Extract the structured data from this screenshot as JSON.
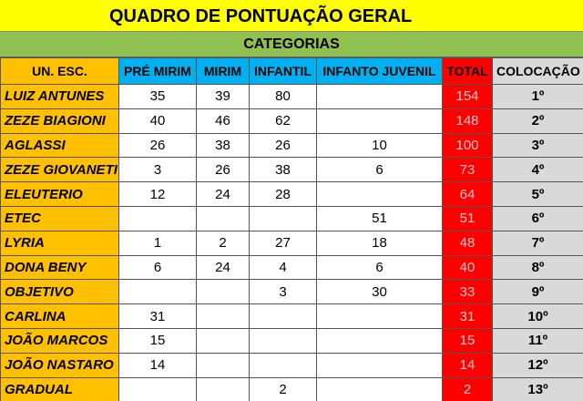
{
  "header": {
    "title": "QUADRO DE PONTUAÇÃO GERAL",
    "subtitle": "CATEGORIAS"
  },
  "table": {
    "columns": [
      "UN. ESC.",
      "PRÉ MIRIM",
      "MIRIM",
      "INFANTIL",
      "INFANTO JUVENIL",
      "TOTAL",
      "COLOCAÇÃO"
    ],
    "rows": [
      [
        "LUIZ ANTUNES",
        35,
        39,
        80,
        null,
        154,
        "1º"
      ],
      [
        "ZEZE BIAGIONI",
        40,
        46,
        62,
        null,
        148,
        "2º"
      ],
      [
        "AGLASSI",
        26,
        38,
        26,
        10,
        100,
        "3º"
      ],
      [
        "ZEZE GIOVANETI",
        3,
        26,
        38,
        6,
        73,
        "4º"
      ],
      [
        "ELEUTERIO",
        12,
        24,
        28,
        null,
        64,
        "5º"
      ],
      [
        "ETEC",
        null,
        null,
        null,
        51,
        51,
        "6º"
      ],
      [
        "LYRIA",
        1,
        2,
        27,
        18,
        48,
        "7º"
      ],
      [
        "DONA BENY",
        6,
        24,
        4,
        6,
        40,
        "8º"
      ],
      [
        "OBJETIVO",
        null,
        null,
        3,
        30,
        33,
        "9º"
      ],
      [
        "CARLINA",
        31,
        null,
        null,
        null,
        31,
        "10º"
      ],
      [
        "JOÃO MARCOS",
        15,
        null,
        null,
        null,
        15,
        "11º"
      ],
      [
        "JOÃO NASTARO",
        14,
        null,
        null,
        null,
        14,
        "12º"
      ],
      [
        "GRADUAL",
        null,
        null,
        2,
        null,
        2,
        "13º"
      ]
    ]
  }
}
